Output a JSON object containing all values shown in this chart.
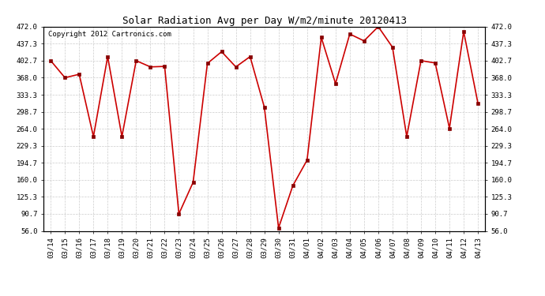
{
  "title": "Solar Radiation Avg per Day W/m2/minute 20120413",
  "copyright": "Copyright 2012 Cartronics.com",
  "dates": [
    "03/14",
    "03/15",
    "03/16",
    "03/17",
    "03/18",
    "03/19",
    "03/20",
    "03/21",
    "03/22",
    "03/23",
    "03/24",
    "03/25",
    "03/26",
    "03/27",
    "03/28",
    "03/29",
    "03/30",
    "03/31",
    "04/01",
    "04/02",
    "04/03",
    "04/04",
    "04/05",
    "04/06",
    "04/07",
    "04/08",
    "04/09",
    "04/10",
    "04/11",
    "04/12",
    "04/13"
  ],
  "values": [
    402.7,
    368.0,
    375.0,
    248.0,
    411.0,
    248.0,
    402.7,
    390.0,
    391.0,
    90.7,
    155.0,
    397.0,
    421.0,
    390.0,
    411.0,
    308.0,
    62.0,
    148.0,
    200.0,
    450.0,
    356.0,
    457.0,
    443.0,
    472.0,
    430.0,
    248.0,
    402.7,
    398.0,
    265.0,
    462.0,
    316.0
  ],
  "ylim": [
    56.0,
    472.0
  ],
  "yticks": [
    56.0,
    90.7,
    125.3,
    160.0,
    194.7,
    229.3,
    264.0,
    298.7,
    333.3,
    368.0,
    402.7,
    437.3,
    472.0
  ],
  "line_color": "#cc0000",
  "marker_color": "#880000",
  "bg_color": "#ffffff",
  "grid_color": "#cccccc",
  "title_fontsize": 9,
  "copyright_fontsize": 6.5,
  "tick_fontsize": 6.5,
  "figwidth": 6.9,
  "figheight": 3.75,
  "dpi": 100
}
